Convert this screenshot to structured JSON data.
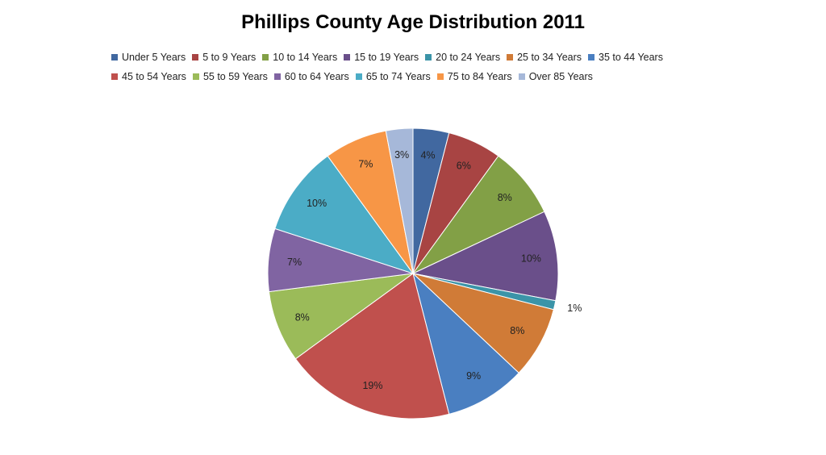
{
  "chart_data": {
    "type": "pie",
    "title": "Phillips County Age Distribution 2011",
    "legend_position": "top",
    "categories": [
      "Under 5 Years",
      "5 to 9 Years",
      "10 to 14 Years",
      "15 to 19 Years",
      "20 to 24 Years",
      "25 to 34 Years",
      "35 to 44 Years",
      "45 to 54 Years",
      "55 to 59 Years",
      "60 to 64 Years",
      "65 to 74 Years",
      "75 to 84 Years",
      "Over 85 Years"
    ],
    "values": [
      4,
      6,
      8,
      10,
      1,
      8,
      9,
      19,
      8,
      7,
      10,
      7,
      3
    ],
    "data_labels": [
      "4%",
      "6%",
      "8%",
      "10%",
      "1%",
      "8%",
      "9%",
      "19%",
      "8%",
      "7%",
      "10%",
      "7%",
      "3%"
    ],
    "colors": [
      "#4168a0",
      "#a84443",
      "#82a046",
      "#6a4f8a",
      "#3b94a8",
      "#d07b37",
      "#4a7fc1",
      "#c0504d",
      "#9bbb59",
      "#8064a2",
      "#4bacc6",
      "#f79646",
      "#a6b8d9"
    ]
  }
}
